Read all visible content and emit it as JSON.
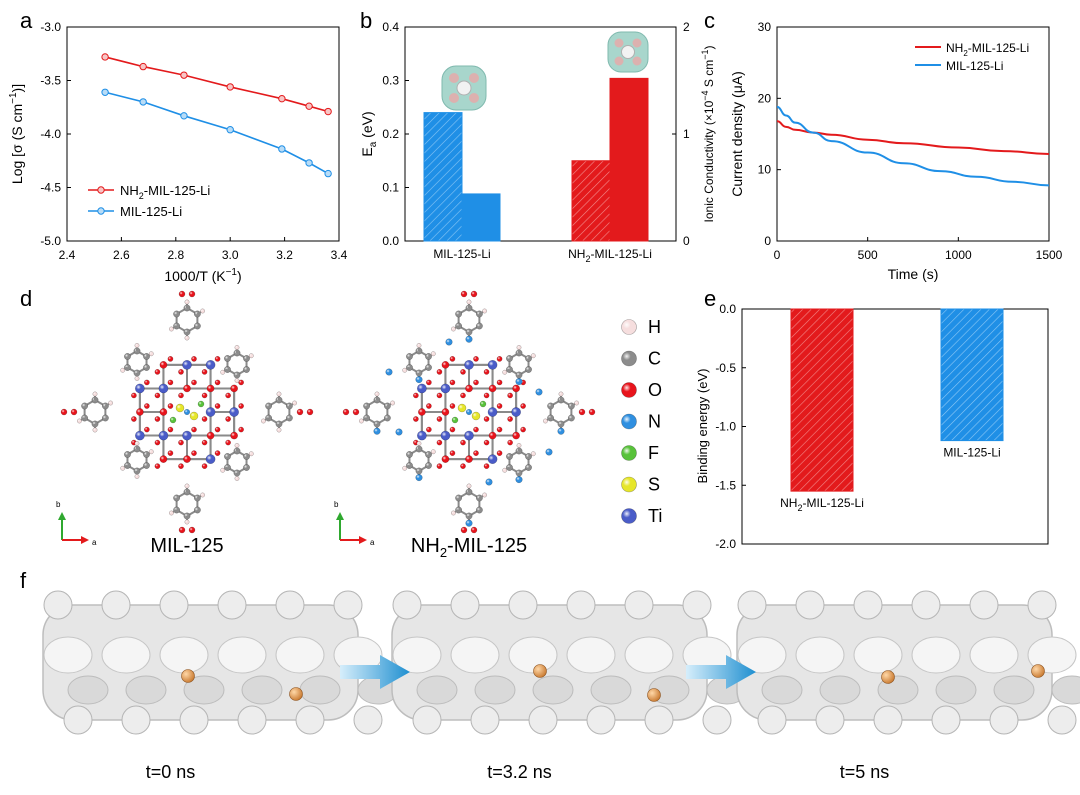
{
  "panel_labels": [
    "a",
    "b",
    "c",
    "d",
    "e",
    "f"
  ],
  "colors": {
    "red": "#e31a1c",
    "blue": "#1f8fe6",
    "grey_frame": "#cfcfcf"
  },
  "chart_data": [
    {
      "panel": "a",
      "type": "line",
      "xlabel": "1000/T (K",
      "xlabel_sup": "−1",
      "xlabel_end": ")",
      "ylabel": "Log [σ (S cm",
      "ylabel_sup": "−1",
      "ylabel_end": ")]",
      "xlim": [
        2.4,
        3.4
      ],
      "ylim": [
        -5.0,
        -3.0
      ],
      "xticks": [
        "2.4",
        "2.6",
        "2.8",
        "3.0",
        "3.2",
        "3.4"
      ],
      "yticks": [
        "-5.0",
        "-4.5",
        "-4.0",
        "-3.5",
        "-3.0"
      ],
      "legend_position": "bottom-left",
      "series": [
        {
          "name": "NH",
          "name_sub": "2",
          "name_end": "-MIL-125-Li",
          "color": "#e31a1c",
          "x": [
            2.54,
            2.68,
            2.83,
            3.0,
            3.19,
            3.29,
            3.36
          ],
          "y": [
            -3.28,
            -3.37,
            -3.45,
            -3.56,
            -3.67,
            -3.74,
            -3.79
          ]
        },
        {
          "name": "MIL-125-Li",
          "name_sub": "",
          "name_end": "",
          "color": "#1f8fe6",
          "x": [
            2.54,
            2.68,
            2.83,
            3.0,
            3.19,
            3.29,
            3.36
          ],
          "y": [
            -3.61,
            -3.7,
            -3.83,
            -3.96,
            -4.14,
            -4.27,
            -4.37
          ]
        }
      ]
    },
    {
      "panel": "b",
      "type": "bar",
      "categories": [
        "MIL-125-Li",
        "NH2-MIL-125-Li"
      ],
      "category_labels": [
        {
          "main": "MIL-125-Li",
          "sub": "",
          "end": ""
        },
        {
          "main": "NH",
          "sub": "2",
          "end": "-MIL-125-Li"
        }
      ],
      "ylabel_left": "E",
      "ylabel_left_sub": "a",
      "ylabel_left_end": " (eV)",
      "ylabel_right": "Ionic Conductivity (×10",
      "ylabel_right_sup": "−4",
      "ylabel_right_mid": " S cm",
      "ylabel_right_sup2": "−1",
      "ylabel_right_end": ")",
      "ylim_left": [
        0,
        0.4
      ],
      "ylim_right": [
        0,
        2
      ],
      "yticks_left": [
        "0.0",
        "0.1",
        "0.2",
        "0.3",
        "0.4"
      ],
      "yticks_right": [
        "0",
        "1",
        "2"
      ],
      "series": [
        {
          "name": "Ea",
          "axis": "left",
          "hatched": true,
          "values": [
            0.24,
            0.15
          ]
        },
        {
          "name": "Ionic Conductivity",
          "axis": "right",
          "hatched": false,
          "values": [
            0.44,
            1.52
          ]
        }
      ],
      "bar_colors": [
        "#1f8fe6",
        "#e31a1c"
      ]
    },
    {
      "panel": "c",
      "type": "line",
      "xlabel": "Time (s)",
      "ylabel": "Current density (μA)",
      "xlim": [
        0,
        1500
      ],
      "ylim": [
        0,
        30
      ],
      "xticks": [
        "0",
        "500",
        "1000",
        "1500"
      ],
      "yticks": [
        "0",
        "10",
        "20",
        "30"
      ],
      "legend_position": "top-right",
      "series": [
        {
          "name": "NH",
          "name_sub": "2",
          "name_end": "-MIL-125-Li",
          "color": "#e31a1c",
          "x": [
            0,
            50,
            100,
            200,
            300,
            500,
            700,
            1000,
            1250,
            1500
          ],
          "y": [
            16.8,
            16.0,
            15.6,
            15.2,
            14.9,
            14.2,
            13.7,
            13.1,
            12.6,
            12.2
          ]
        },
        {
          "name": "MIL-125-Li",
          "name_sub": "",
          "name_end": "",
          "color": "#1f8fe6",
          "x": [
            0,
            50,
            100,
            200,
            300,
            500,
            700,
            900,
            1100,
            1300,
            1500
          ],
          "y": [
            18.8,
            17.6,
            16.6,
            15.2,
            14.0,
            12.4,
            10.9,
            9.8,
            9.0,
            8.3,
            7.8
          ]
        }
      ]
    },
    {
      "panel": "e",
      "type": "bar",
      "ylabel": "Binding energy (eV)",
      "ylim": [
        -2.0,
        0.0
      ],
      "yticks": [
        "0.0",
        "-0.5",
        "-1.0",
        "-1.5",
        "-2.0"
      ],
      "categories": [
        "NH2-MIL-125-Li",
        "MIL-125-Li"
      ],
      "category_labels": [
        {
          "main": "NH",
          "sub": "2",
          "end": "-MIL-125-Li"
        },
        {
          "main": "MIL-125-Li",
          "sub": "",
          "end": ""
        }
      ],
      "values": [
        -1.55,
        -1.12
      ],
      "bar_colors": [
        "#e31a1c",
        "#1f8fe6"
      ]
    }
  ],
  "panel_d": {
    "structures": [
      {
        "label": "MIL-125",
        "label_sub": "",
        "label_end": ""
      },
      {
        "label": "NH",
        "label_sub": "2",
        "label_end": "-MIL-125"
      }
    ],
    "axis_letters": {
      "b": "b",
      "a": "a"
    },
    "legend": [
      {
        "element": "H",
        "color": "#f6dede"
      },
      {
        "element": "C",
        "color": "#8c8c8c"
      },
      {
        "element": "O",
        "color": "#e8141c"
      },
      {
        "element": "N",
        "color": "#2f8fe0"
      },
      {
        "element": "F",
        "color": "#58c23a"
      },
      {
        "element": "S",
        "color": "#e6e62a"
      },
      {
        "element": "Ti",
        "color": "#4a5cc8"
      }
    ]
  },
  "panel_f": {
    "frames": [
      {
        "caption": "t=0 ns"
      },
      {
        "caption": "t=3.2 ns"
      },
      {
        "caption": "t=5 ns"
      }
    ]
  }
}
